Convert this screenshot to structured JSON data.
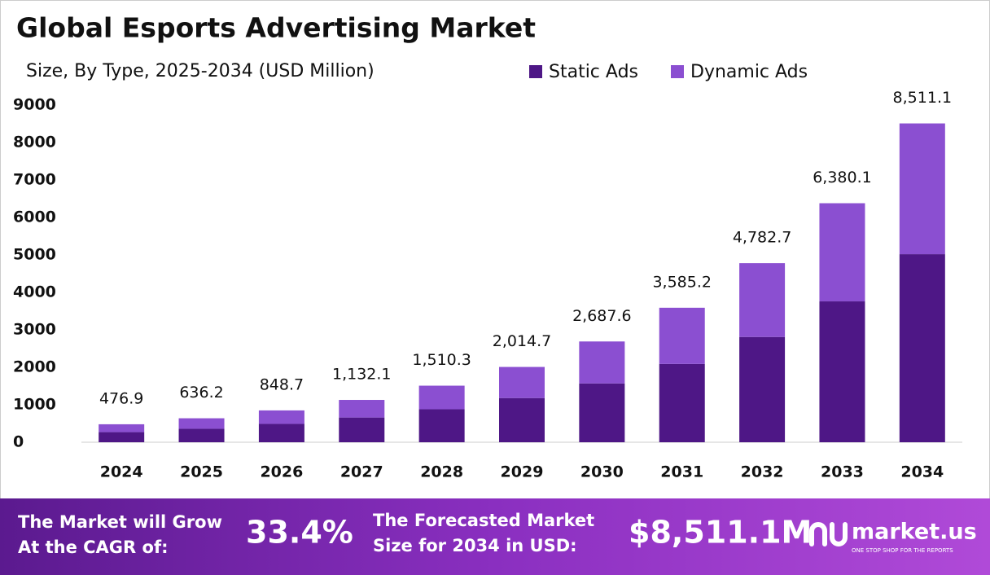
{
  "chart_data": {
    "type": "stacked-bar",
    "title": "Global Esports Advertising Market",
    "subtitle": "Size, By Type, 2025-2034 (USD Million)",
    "categories": [
      "2024",
      "2025",
      "2026",
      "2027",
      "2028",
      "2029",
      "2030",
      "2031",
      "2032",
      "2033",
      "2034"
    ],
    "series": [
      {
        "name": "Static Ads",
        "color": "#4e1786",
        "values": [
          270,
          360,
          490,
          660,
          880,
          1180,
          1570,
          2090,
          2810,
          3760,
          5020
        ]
      },
      {
        "name": "Dynamic Ads",
        "color": "#8b4fd1",
        "values": [
          210,
          280,
          360,
          470,
          630,
          830,
          1120,
          1500,
          1970,
          2620,
          3490
        ]
      }
    ],
    "totals": [
      476.9,
      636.2,
      848.7,
      1132.1,
      1510.3,
      2014.7,
      2687.6,
      3585.2,
      4782.7,
      6380.1,
      8511.1
    ],
    "total_labels": [
      "476.9",
      "636.2",
      "848.7",
      "1,132.1",
      "1,510.3",
      "2,014.7",
      "2,687.6",
      "3,585.2",
      "4,782.7",
      "6,380.1",
      "8,511.1"
    ],
    "ylim": [
      0,
      9000
    ],
    "yticks": [
      0,
      1000,
      2000,
      3000,
      4000,
      5000,
      6000,
      7000,
      8000,
      9000
    ],
    "grid": false,
    "legend": "top"
  },
  "footer": {
    "cagr_text": [
      "The Market will Grow",
      "At the CAGR of:"
    ],
    "cagr_value": "33.4%",
    "forecast_text": [
      "The Forecasted Market",
      "Size for 2034 in USD:"
    ],
    "forecast_value": "$8,511.1M",
    "brand": "market.us",
    "tagline": "ONE STOP SHOP FOR THE REPORTS"
  }
}
